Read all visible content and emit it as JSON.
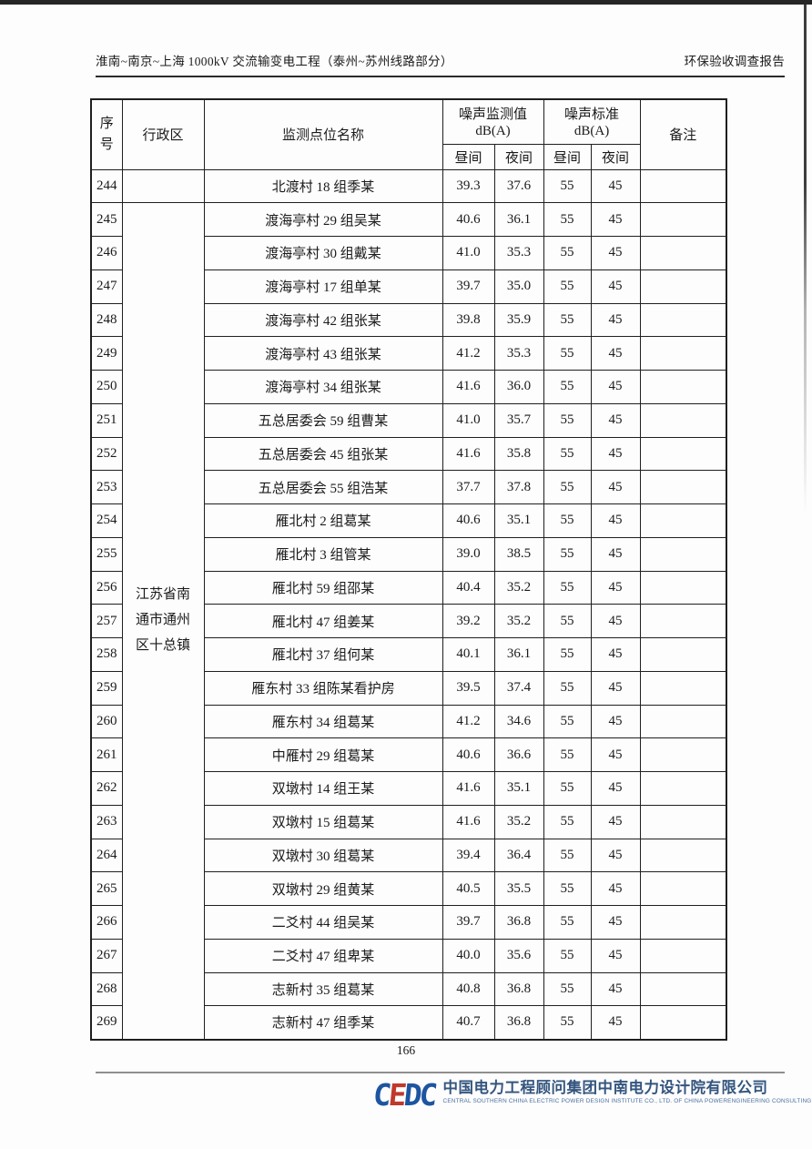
{
  "header": {
    "left_title": "淮南~南京~上海 1000kV 交流输变电工程（泰州~苏州线路部分）",
    "right_title": "环保验收调查报告"
  },
  "table": {
    "headers": {
      "seq": "序号",
      "region": "行政区",
      "site": "监测点位名称",
      "measured_group_line1": "噪声监测值",
      "measured_group_line2": "dB(A)",
      "standard_group_line1": "噪声标准",
      "standard_group_line2": "dB(A)",
      "day": "昼间",
      "night": "夜间",
      "remark": "备注"
    },
    "region": "江苏省南通市通州区十总镇",
    "rows": [
      {
        "no": "244",
        "site": "北渡村 18 组季某",
        "day": "39.3",
        "night": "37.6",
        "std_day": "55",
        "std_night": "45",
        "remark": ""
      },
      {
        "no": "245",
        "site": "渡海亭村 29 组吴某",
        "day": "40.6",
        "night": "36.1",
        "std_day": "55",
        "std_night": "45",
        "remark": ""
      },
      {
        "no": "246",
        "site": "渡海亭村 30 组戴某",
        "day": "41.0",
        "night": "35.3",
        "std_day": "55",
        "std_night": "45",
        "remark": ""
      },
      {
        "no": "247",
        "site": "渡海亭村 17 组单某",
        "day": "39.7",
        "night": "35.0",
        "std_day": "55",
        "std_night": "45",
        "remark": ""
      },
      {
        "no": "248",
        "site": "渡海亭村 42 组张某",
        "day": "39.8",
        "night": "35.9",
        "std_day": "55",
        "std_night": "45",
        "remark": ""
      },
      {
        "no": "249",
        "site": "渡海亭村 43 组张某",
        "day": "41.2",
        "night": "35.3",
        "std_day": "55",
        "std_night": "45",
        "remark": ""
      },
      {
        "no": "250",
        "site": "渡海亭村 34 组张某",
        "day": "41.6",
        "night": "36.0",
        "std_day": "55",
        "std_night": "45",
        "remark": ""
      },
      {
        "no": "251",
        "site": "五总居委会 59 组曹某",
        "day": "41.0",
        "night": "35.7",
        "std_day": "55",
        "std_night": "45",
        "remark": ""
      },
      {
        "no": "252",
        "site": "五总居委会 45 组张某",
        "day": "41.6",
        "night": "35.8",
        "std_day": "55",
        "std_night": "45",
        "remark": ""
      },
      {
        "no": "253",
        "site": "五总居委会 55 组浩某",
        "day": "37.7",
        "night": "37.8",
        "std_day": "55",
        "std_night": "45",
        "remark": ""
      },
      {
        "no": "254",
        "site": "雁北村 2 组葛某",
        "day": "40.6",
        "night": "35.1",
        "std_day": "55",
        "std_night": "45",
        "remark": ""
      },
      {
        "no": "255",
        "site": "雁北村 3 组管某",
        "day": "39.0",
        "night": "38.5",
        "std_day": "55",
        "std_night": "45",
        "remark": ""
      },
      {
        "no": "256",
        "site": "雁北村 59 组邵某",
        "day": "40.4",
        "night": "35.2",
        "std_day": "55",
        "std_night": "45",
        "remark": ""
      },
      {
        "no": "257",
        "site": "雁北村 47 组姜某",
        "day": "39.2",
        "night": "35.2",
        "std_day": "55",
        "std_night": "45",
        "remark": ""
      },
      {
        "no": "258",
        "site": "雁北村 37 组何某",
        "day": "40.1",
        "night": "36.1",
        "std_day": "55",
        "std_night": "45",
        "remark": ""
      },
      {
        "no": "259",
        "site": "雁东村 33 组陈某看护房",
        "day": "39.5",
        "night": "37.4",
        "std_day": "55",
        "std_night": "45",
        "remark": ""
      },
      {
        "no": "260",
        "site": "雁东村 34 组葛某",
        "day": "41.2",
        "night": "34.6",
        "std_day": "55",
        "std_night": "45",
        "remark": ""
      },
      {
        "no": "261",
        "site": "中雁村 29 组葛某",
        "day": "40.6",
        "night": "36.6",
        "std_day": "55",
        "std_night": "45",
        "remark": ""
      },
      {
        "no": "262",
        "site": "双墩村 14 组王某",
        "day": "41.6",
        "night": "35.1",
        "std_day": "55",
        "std_night": "45",
        "remark": ""
      },
      {
        "no": "263",
        "site": "双墩村 15 组葛某",
        "day": "41.6",
        "night": "35.2",
        "std_day": "55",
        "std_night": "45",
        "remark": ""
      },
      {
        "no": "264",
        "site": "双墩村 30 组葛某",
        "day": "39.4",
        "night": "36.4",
        "std_day": "55",
        "std_night": "45",
        "remark": ""
      },
      {
        "no": "265",
        "site": "双墩村 29 组黄某",
        "day": "40.5",
        "night": "35.5",
        "std_day": "55",
        "std_night": "45",
        "remark": ""
      },
      {
        "no": "266",
        "site": "二爻村 44 组吴某",
        "day": "39.7",
        "night": "36.8",
        "std_day": "55",
        "std_night": "45",
        "remark": ""
      },
      {
        "no": "267",
        "site": "二爻村 47 组卑某",
        "day": "40.0",
        "night": "35.6",
        "std_day": "55",
        "std_night": "45",
        "remark": ""
      },
      {
        "no": "268",
        "site": "志新村 35 组葛某",
        "day": "40.8",
        "night": "36.8",
        "std_day": "55",
        "std_night": "45",
        "remark": ""
      },
      {
        "no": "269",
        "site": "志新村 47 组季某",
        "day": "40.7",
        "night": "36.8",
        "std_day": "55",
        "std_night": "45",
        "remark": ""
      }
    ]
  },
  "footer": {
    "page_number": "166",
    "logo": {
      "letters": [
        "C",
        "E",
        "D",
        "C"
      ],
      "letter_colors": [
        "#1d55a0",
        "#c0392b",
        "#1d55a0",
        "#1d55a0"
      ],
      "company_cn": "中国电力工程顾问集团中南电力设计院有限公司",
      "company_en": "CENTRAL SOUTHERN CHINA ELECTRIC POWER DESIGN INSTITUTE CO., LTD. OF CHINA POWERENGINEERING CONSULTING GROUP"
    }
  }
}
